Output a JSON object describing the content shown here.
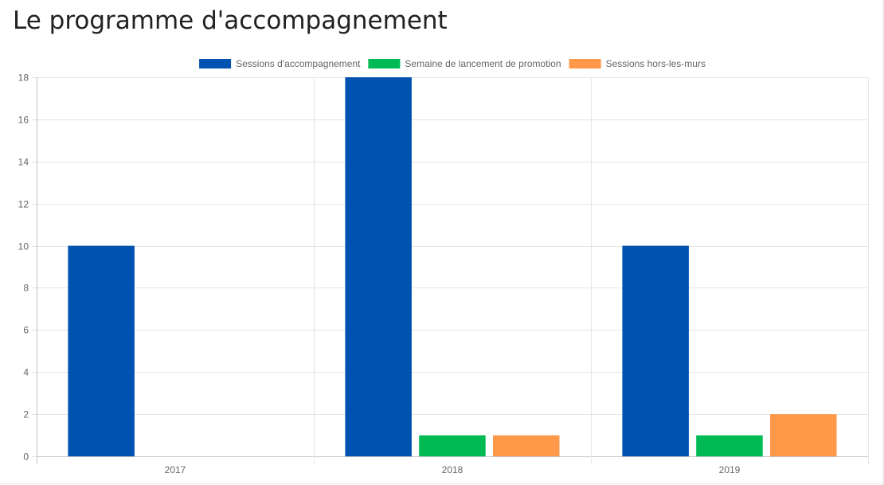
{
  "page": {
    "title": "Le programme d'accompagnement"
  },
  "chart_data": {
    "type": "bar",
    "title": "",
    "xlabel": "",
    "ylabel": "",
    "categories": [
      "2017",
      "2018",
      "2019"
    ],
    "series": [
      {
        "name": "Sessions d'accompagnement",
        "color": "#0052b1",
        "values": [
          10,
          18,
          10
        ]
      },
      {
        "name": "Semaine de lancement de promotion",
        "color": "#00bb54",
        "values": [
          0,
          1,
          1
        ]
      },
      {
        "name": "Sessions hors-les-murs",
        "color": "#ff9849",
        "values": [
          0,
          1,
          2
        ]
      }
    ],
    "ylim": [
      0,
      18
    ],
    "yticks": [
      0,
      2,
      4,
      6,
      8,
      10,
      12,
      14,
      16,
      18
    ],
    "grid": true,
    "legend_position": "top-center"
  }
}
